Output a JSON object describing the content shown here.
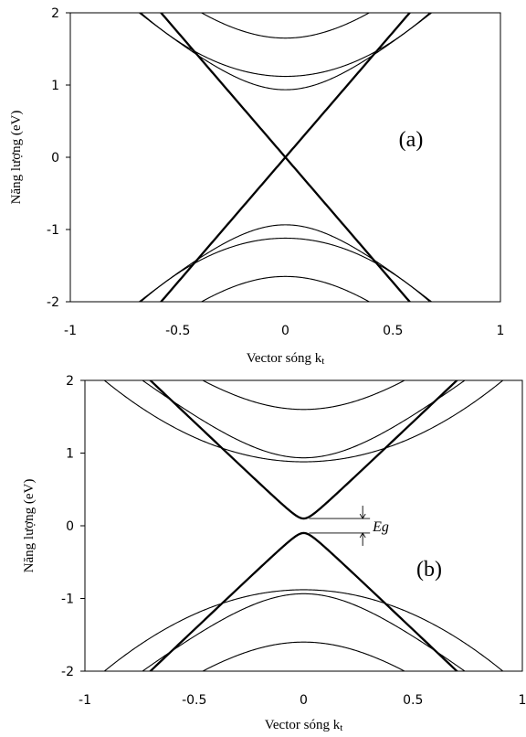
{
  "chart_data": [
    {
      "type": "line",
      "panel_label": "(a)",
      "xlabel": "Vector sóng k",
      "xlabel_sub": "t",
      "ylabel": "Năng lượng (eV)",
      "xlim": [
        -1,
        1
      ],
      "ylim": [
        -2,
        2
      ],
      "xticks": [
        "-1",
        "-0.5",
        "0",
        "0.5",
        "1"
      ],
      "yticks": [
        "2",
        "1",
        "0",
        "-1",
        "-2"
      ],
      "grid": false,
      "gap": 0,
      "bands": [
        {
          "kind": "linear",
          "slope": 3.46,
          "e0": 0,
          "bold": true
        },
        {
          "kind": "hyperbola",
          "e0": 0.935,
          "slope": 2.6,
          "bold": false
        },
        {
          "kind": "hyperbola",
          "e0": 1.65,
          "slope": 2.9,
          "bold": false
        },
        {
          "kind": "parabola",
          "e0": 1.12,
          "curv": 1.95,
          "bold": false
        }
      ]
    },
    {
      "type": "line",
      "panel_label": "(b)",
      "xlabel": "Vector sóng k",
      "xlabel_sub": "t",
      "ylabel": "Năng lượng (eV)",
      "annotation": "Eg",
      "xlim": [
        -1,
        1
      ],
      "ylim": [
        -2,
        2
      ],
      "xticks": [
        "-1",
        "-0.5",
        "0",
        "0.5",
        "1"
      ],
      "yticks": [
        "2",
        "1",
        "0",
        "-1",
        "-2"
      ],
      "grid": false,
      "gap": 0.1,
      "bands": [
        {
          "kind": "hyperbola",
          "e0": 0.1,
          "slope": 2.85,
          "bold": true
        },
        {
          "kind": "hyperbola",
          "e0": 0.935,
          "slope": 2.4,
          "bold": false
        },
        {
          "kind": "hyperbola",
          "e0": 1.6,
          "slope": 2.6,
          "bold": false
        },
        {
          "kind": "parabola",
          "e0": 0.88,
          "curv": 1.35,
          "bold": false
        }
      ]
    }
  ]
}
